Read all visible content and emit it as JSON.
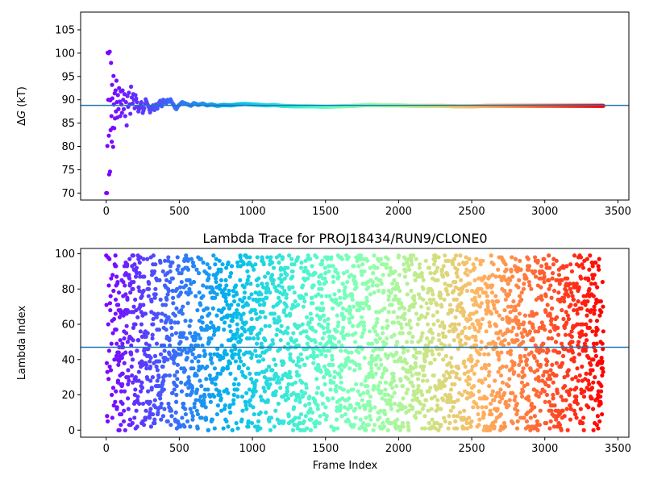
{
  "chart_data": [
    {
      "type": "scatter",
      "title": "",
      "xlabel": "",
      "ylabel": "ΔG (kT)",
      "ylabel_symbol": "Δ",
      "ylabel_var": "G",
      "ylabel_unit": " (kT)",
      "xlim": [
        -175,
        3575
      ],
      "ylim": [
        68.5,
        108.8
      ],
      "xticks": [
        0,
        500,
        1000,
        1500,
        2000,
        2500,
        3000,
        3500
      ],
      "xtick_labels": [
        "0",
        "500",
        "1000",
        "1500",
        "2000",
        "2500",
        "3000",
        "3500"
      ],
      "yticks": [
        70,
        75,
        80,
        85,
        90,
        95,
        100,
        105
      ],
      "ytick_labels": [
        "70",
        "75",
        "80",
        "85",
        "90",
        "95",
        "100",
        "105"
      ],
      "hline": {
        "y": 88.8,
        "color": "#1f77b4"
      },
      "grid": false,
      "legend": "none",
      "colormap": "rainbow",
      "frames": 3400,
      "series": [
        {
          "points": [
            [
              0,
              70.0
            ],
            [
              5,
              70.0
            ],
            [
              8,
              80.1
            ],
            [
              10,
              100.1
            ],
            [
              14,
              90.0
            ],
            [
              16,
              100.0
            ],
            [
              18,
              82.3
            ],
            [
              20,
              74.0
            ],
            [
              22,
              90.0
            ],
            [
              24,
              100.3
            ],
            [
              26,
              74.6
            ],
            [
              28,
              89.9
            ],
            [
              30,
              83.5
            ],
            [
              33,
              97.9
            ],
            [
              36,
              86.5
            ],
            [
              38,
              81.0
            ],
            [
              40,
              93.2
            ],
            [
              42,
              90.3
            ],
            [
              45,
              84.0
            ],
            [
              47,
              79.9
            ],
            [
              50,
              95.1
            ],
            [
              52,
              89.0
            ],
            [
              55,
              83.9
            ],
            [
              58,
              91.4
            ],
            [
              60,
              86.0
            ],
            [
              64,
              92.0
            ],
            [
              67,
              87.5
            ],
            [
              70,
              94.1
            ],
            [
              73,
              89.5
            ],
            [
              76,
              86.2
            ],
            [
              80,
              91.0
            ],
            [
              84,
              88.0
            ],
            [
              88,
              92.5
            ],
            [
              92,
              89.6
            ],
            [
              96,
              86.5
            ],
            [
              100,
              91.8
            ],
            [
              104,
              89.0
            ],
            [
              108,
              87.2
            ],
            [
              112,
              92.0
            ],
            [
              116,
              90.0
            ],
            [
              120,
              88.0
            ],
            [
              125,
              91.2
            ],
            [
              130,
              86.5
            ],
            [
              135,
              89.5
            ],
            [
              140,
              84.5
            ],
            [
              145,
              90.8
            ],
            [
              150,
              88.5
            ],
            [
              155,
              91.5
            ],
            [
              160,
              89.0
            ],
            [
              165,
              87.0
            ],
            [
              170,
              92.8
            ],
            [
              175,
              90.5
            ],
            [
              180,
              89.2
            ],
            [
              185,
              91.2
            ],
            [
              190,
              90.0
            ],
            [
              195,
              88.2
            ],
            [
              200,
              91.0
            ],
            [
              210,
              89.5
            ],
            [
              220,
              87.5
            ],
            [
              230,
              88.5
            ],
            [
              240,
              89.5
            ],
            [
              250,
              87.2
            ],
            [
              260,
              88.2
            ],
            [
              270,
              90.1
            ],
            [
              280,
              89.2
            ],
            [
              290,
              88.5
            ],
            [
              300,
              87.3
            ],
            [
              310,
              88.2
            ],
            [
              320,
              88.8
            ],
            [
              330,
              87.8
            ],
            [
              340,
              89.0
            ],
            [
              350,
              88.1
            ],
            [
              360,
              89.3
            ],
            [
              370,
              89.8
            ],
            [
              380,
              88.6
            ],
            [
              390,
              90.0
            ],
            [
              400,
              89.8
            ],
            [
              410,
              89.2
            ],
            [
              420,
              90.0
            ],
            [
              430,
              89.6
            ],
            [
              440,
              90.1
            ],
            [
              450,
              89.4
            ],
            [
              460,
              89.0
            ],
            [
              470,
              88.3
            ],
            [
              480,
              88.0
            ],
            [
              490,
              88.6
            ],
            [
              500,
              88.9
            ],
            [
              520,
              89.5
            ],
            [
              540,
              89.2
            ],
            [
              560,
              89.0
            ],
            [
              580,
              88.7
            ],
            [
              600,
              89.3
            ],
            [
              630,
              88.9
            ],
            [
              660,
              89.2
            ],
            [
              690,
              88.8
            ],
            [
              720,
              89.0
            ],
            [
              760,
              88.7
            ],
            [
              800,
              88.9
            ],
            [
              850,
              88.8
            ],
            [
              900,
              89.0
            ],
            [
              950,
              89.1
            ],
            [
              1000,
              89.0
            ],
            [
              1050,
              88.9
            ],
            [
              1100,
              88.8
            ],
            [
              1150,
              88.9
            ],
            [
              1200,
              88.7
            ],
            [
              1300,
              88.6
            ],
            [
              1400,
              88.6
            ],
            [
              1500,
              88.5
            ],
            [
              1600,
              88.6
            ],
            [
              1700,
              88.7
            ],
            [
              1800,
              88.9
            ],
            [
              1900,
              88.8
            ],
            [
              2000,
              88.8
            ],
            [
              2100,
              88.7
            ],
            [
              2200,
              88.7
            ],
            [
              2300,
              88.7
            ],
            [
              2400,
              88.6
            ],
            [
              2500,
              88.6
            ],
            [
              2600,
              88.7
            ],
            [
              2700,
              88.7
            ],
            [
              2800,
              88.7
            ],
            [
              2900,
              88.7
            ],
            [
              3000,
              88.7
            ],
            [
              3100,
              88.7
            ],
            [
              3200,
              88.7
            ],
            [
              3300,
              88.7
            ],
            [
              3400,
              88.7
            ]
          ]
        }
      ]
    },
    {
      "type": "scatter",
      "title": "Lambda Trace for PROJ18434/RUN9/CLONE0",
      "xlabel": "Frame Index",
      "ylabel": "Lambda Index",
      "xlim": [
        -175,
        3575
      ],
      "ylim": [
        -4,
        103
      ],
      "xticks": [
        0,
        500,
        1000,
        1500,
        2000,
        2500,
        3000,
        3500
      ],
      "xtick_labels": [
        "0",
        "500",
        "1000",
        "1500",
        "2000",
        "2500",
        "3000",
        "3500"
      ],
      "yticks": [
        0,
        20,
        40,
        60,
        80,
        100
      ],
      "ytick_labels": [
        "0",
        "20",
        "40",
        "60",
        "80",
        "100"
      ],
      "hline": {
        "y": 47,
        "color": "#1f77b4"
      },
      "grid": false,
      "legend": "none",
      "colormap": "rainbow",
      "frames": 3400,
      "lambda_range": [
        0,
        99
      ],
      "sampling": "uniform-random",
      "early_points": [
        [
          0,
          99
        ],
        [
          2,
          71
        ],
        [
          4,
          38
        ],
        [
          6,
          8
        ],
        [
          8,
          33
        ],
        [
          10,
          5
        ],
        [
          12,
          98
        ],
        [
          14,
          60
        ],
        [
          16,
          29
        ],
        [
          18,
          82
        ],
        [
          20,
          45
        ],
        [
          22,
          97
        ],
        [
          24,
          36
        ],
        [
          26,
          72
        ],
        [
          28,
          68
        ],
        [
          30,
          76
        ],
        [
          32,
          34
        ],
        [
          34,
          86
        ],
        [
          36,
          49
        ],
        [
          38,
          20
        ],
        [
          40,
          62
        ],
        [
          42,
          7
        ],
        [
          44,
          88
        ],
        [
          46,
          55
        ],
        [
          48,
          24
        ],
        [
          50,
          79
        ],
        [
          52,
          14
        ],
        [
          54,
          63
        ],
        [
          56,
          40
        ],
        [
          58,
          94
        ]
      ]
    }
  ]
}
